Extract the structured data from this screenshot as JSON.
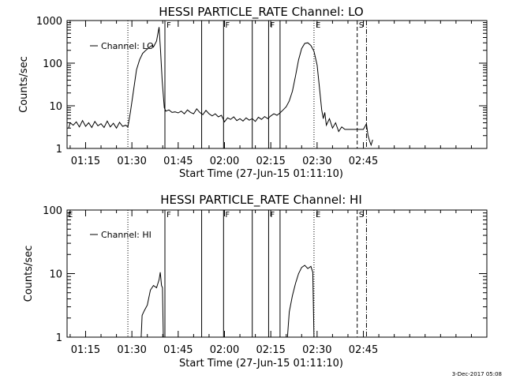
{
  "stamp": "3-Dec-2017 05:08",
  "chart_data": [
    {
      "type": "line",
      "title": "HESSI PARTICLE_RATE Channel: LO",
      "xlabel": "Start Time (27-Jun-15 01:11:10)",
      "ylabel": "Counts/sec",
      "yscale": "log",
      "ylim": [
        1,
        1000
      ],
      "xlim": [
        69,
        205
      ],
      "x_ticks": [
        {
          "value": 75,
          "label": "01:15"
        },
        {
          "value": 90,
          "label": "01:30"
        },
        {
          "value": 105,
          "label": "01:45"
        },
        {
          "value": 120,
          "label": "02:00"
        },
        {
          "value": 135,
          "label": "02:15"
        },
        {
          "value": 150,
          "label": "02:30"
        },
        {
          "value": 165,
          "label": "02:45"
        }
      ],
      "y_ticks": [
        {
          "value": 1,
          "label": "1"
        },
        {
          "value": 10,
          "label": "10"
        },
        {
          "value": 100,
          "label": "100"
        },
        {
          "value": 1000,
          "label": "1000"
        }
      ],
      "legend": {
        "position": "top-left",
        "label": "Channel: LO"
      },
      "markers": [
        {
          "x": 88.7,
          "style": "dotted",
          "label": ""
        },
        {
          "x": 100.7,
          "style": "solid",
          "label": "F"
        },
        {
          "x": 112.6,
          "style": "solid",
          "label": ""
        },
        {
          "x": 119.7,
          "style": "solid",
          "label": "F"
        },
        {
          "x": 129.0,
          "style": "solid",
          "label": ""
        },
        {
          "x": 134.3,
          "style": "solid",
          "label": "F"
        },
        {
          "x": 138.0,
          "style": "solid",
          "label": ""
        },
        {
          "x": 149.0,
          "style": "dotted",
          "label": "E"
        },
        {
          "x": 163.0,
          "style": "dashed",
          "label": "S"
        },
        {
          "x": 166.0,
          "style": "dashdot",
          "label": ""
        }
      ],
      "series": [
        {
          "name": "Channel: LO",
          "points": [
            [
              69.5,
              3.0
            ],
            [
              70,
              4.0
            ],
            [
              71,
              3.5
            ],
            [
              72,
              4.2
            ],
            [
              73,
              3.2
            ],
            [
              74,
              4.5
            ],
            [
              75,
              3.3
            ],
            [
              76,
              4.0
            ],
            [
              77,
              3.1
            ],
            [
              78,
              4.3
            ],
            [
              79,
              3.4
            ],
            [
              80,
              3.8
            ],
            [
              81,
              3.1
            ],
            [
              82,
              4.4
            ],
            [
              83,
              3.2
            ],
            [
              84,
              3.9
            ],
            [
              85,
              3.0
            ],
            [
              86,
              4.1
            ],
            [
              87,
              3.3
            ],
            [
              88,
              3.5
            ],
            [
              88.7,
              3.2
            ],
            [
              89.5,
              7
            ],
            [
              90.5,
              22
            ],
            [
              91.5,
              70
            ],
            [
              92.5,
              120
            ],
            [
              93.5,
              170
            ],
            [
              94.5,
              200
            ],
            [
              95.5,
              230
            ],
            [
              96.5,
              260
            ],
            [
              97,
              240
            ],
            [
              98,
              330
            ],
            [
              98.8,
              700
            ],
            [
              99.3,
              190
            ],
            [
              99.8,
              40
            ],
            [
              100.5,
              9
            ],
            [
              101,
              7.5
            ],
            [
              102,
              8
            ],
            [
              103,
              7
            ],
            [
              104,
              7.2
            ],
            [
              105,
              6.8
            ],
            [
              106,
              7.5
            ],
            [
              107,
              6.5
            ],
            [
              108,
              8
            ],
            [
              109,
              7
            ],
            [
              110,
              6.5
            ],
            [
              111,
              8.5
            ],
            [
              112,
              7
            ],
            [
              113,
              6.2
            ],
            [
              114,
              7.8
            ],
            [
              115,
              6.5
            ],
            [
              116,
              5.8
            ],
            [
              117,
              6.5
            ],
            [
              118,
              5.5
            ],
            [
              119,
              6
            ],
            [
              120,
              4.2
            ],
            [
              121,
              5.2
            ],
            [
              122,
              4.8
            ],
            [
              123,
              5.5
            ],
            [
              124,
              4.5
            ],
            [
              125,
              5
            ],
            [
              126,
              4.4
            ],
            [
              127,
              5.2
            ],
            [
              128,
              4.6
            ],
            [
              129,
              5
            ],
            [
              130,
              4.3
            ],
            [
              131,
              5.4
            ],
            [
              132,
              4.8
            ],
            [
              133,
              5.6
            ],
            [
              134,
              5
            ],
            [
              135,
              5.8
            ],
            [
              136,
              6.5
            ],
            [
              137,
              6
            ],
            [
              138,
              6.8
            ],
            [
              139,
              8
            ],
            [
              140,
              9.5
            ],
            [
              141,
              13
            ],
            [
              142,
              22
            ],
            [
              143,
              50
            ],
            [
              144,
              120
            ],
            [
              145,
              220
            ],
            [
              146,
              290
            ],
            [
              147,
              300
            ],
            [
              148,
              260
            ],
            [
              149,
              190
            ],
            [
              150,
              90
            ],
            [
              150.8,
              25
            ],
            [
              151.5,
              8
            ],
            [
              152,
              5
            ],
            [
              152.5,
              7
            ],
            [
              153,
              3.5
            ],
            [
              154,
              5
            ],
            [
              155,
              3
            ],
            [
              156,
              4
            ],
            [
              157,
              2.5
            ],
            [
              158,
              3.2
            ],
            [
              159,
              2.8
            ],
            [
              160,
              2.8
            ],
            [
              161,
              2.8
            ],
            [
              162,
              2.8
            ],
            [
              163,
              2.8
            ],
            [
              164,
              2.8
            ],
            [
              165,
              2.8
            ],
            [
              166,
              3.8
            ],
            [
              166.5,
              2.0
            ],
            [
              167,
              1.5
            ],
            [
              167.5,
              1.2
            ],
            [
              168,
              1.6
            ]
          ]
        }
      ]
    },
    {
      "type": "line",
      "title": "HESSI PARTICLE_RATE Channel: HI",
      "xlabel": "Start Time (27-Jun-15 01:11:10)",
      "ylabel": "Counts/sec",
      "yscale": "log",
      "ylim": [
        1,
        100
      ],
      "xlim": [
        69,
        205
      ],
      "x_ticks": [
        {
          "value": 75,
          "label": "01:15"
        },
        {
          "value": 90,
          "label": "01:30"
        },
        {
          "value": 105,
          "label": "01:45"
        },
        {
          "value": 120,
          "label": "02:00"
        },
        {
          "value": 135,
          "label": "02:15"
        },
        {
          "value": 150,
          "label": "02:30"
        },
        {
          "value": 165,
          "label": "02:45"
        }
      ],
      "y_ticks": [
        {
          "value": 1,
          "label": "1"
        },
        {
          "value": 10,
          "label": "10"
        },
        {
          "value": 100,
          "label": "100"
        }
      ],
      "legend": {
        "position": "top-left",
        "label": "Channel: HI"
      },
      "corner_label": "E",
      "markers": [
        {
          "x": 88.7,
          "style": "dotted",
          "label": ""
        },
        {
          "x": 100.7,
          "style": "solid",
          "label": "F"
        },
        {
          "x": 112.6,
          "style": "solid",
          "label": ""
        },
        {
          "x": 119.7,
          "style": "solid",
          "label": "F"
        },
        {
          "x": 129.0,
          "style": "solid",
          "label": ""
        },
        {
          "x": 134.3,
          "style": "solid",
          "label": "F"
        },
        {
          "x": 138.0,
          "style": "solid",
          "label": ""
        },
        {
          "x": 149.0,
          "style": "dotted",
          "label": "E"
        },
        {
          "x": 163.0,
          "style": "dashed",
          "label": "S"
        },
        {
          "x": 166.0,
          "style": "dashdot",
          "label": ""
        }
      ],
      "series": [
        {
          "name": "Channel: HI",
          "segments": [
            [
              [
                93.0,
                1
              ],
              [
                93.3,
                2.2
              ],
              [
                94,
                2.6
              ],
              [
                95,
                3.2
              ],
              [
                96,
                5.5
              ],
              [
                97,
                6.5
              ],
              [
                98,
                6
              ],
              [
                98.8,
                8
              ],
              [
                99.2,
                10.5
              ],
              [
                99.6,
                6.5
              ],
              [
                99.9,
                6
              ],
              [
                100.2,
                1
              ]
            ],
            [
              [
                140.4,
                1
              ],
              [
                141,
                2.5
              ],
              [
                142,
                4.5
              ],
              [
                143,
                7
              ],
              [
                144,
                10
              ],
              [
                145,
                12.5
              ],
              [
                146,
                13.5
              ],
              [
                147,
                12
              ],
              [
                148,
                13
              ],
              [
                148.6,
                10.5
              ],
              [
                149,
                1
              ]
            ]
          ]
        }
      ]
    }
  ]
}
